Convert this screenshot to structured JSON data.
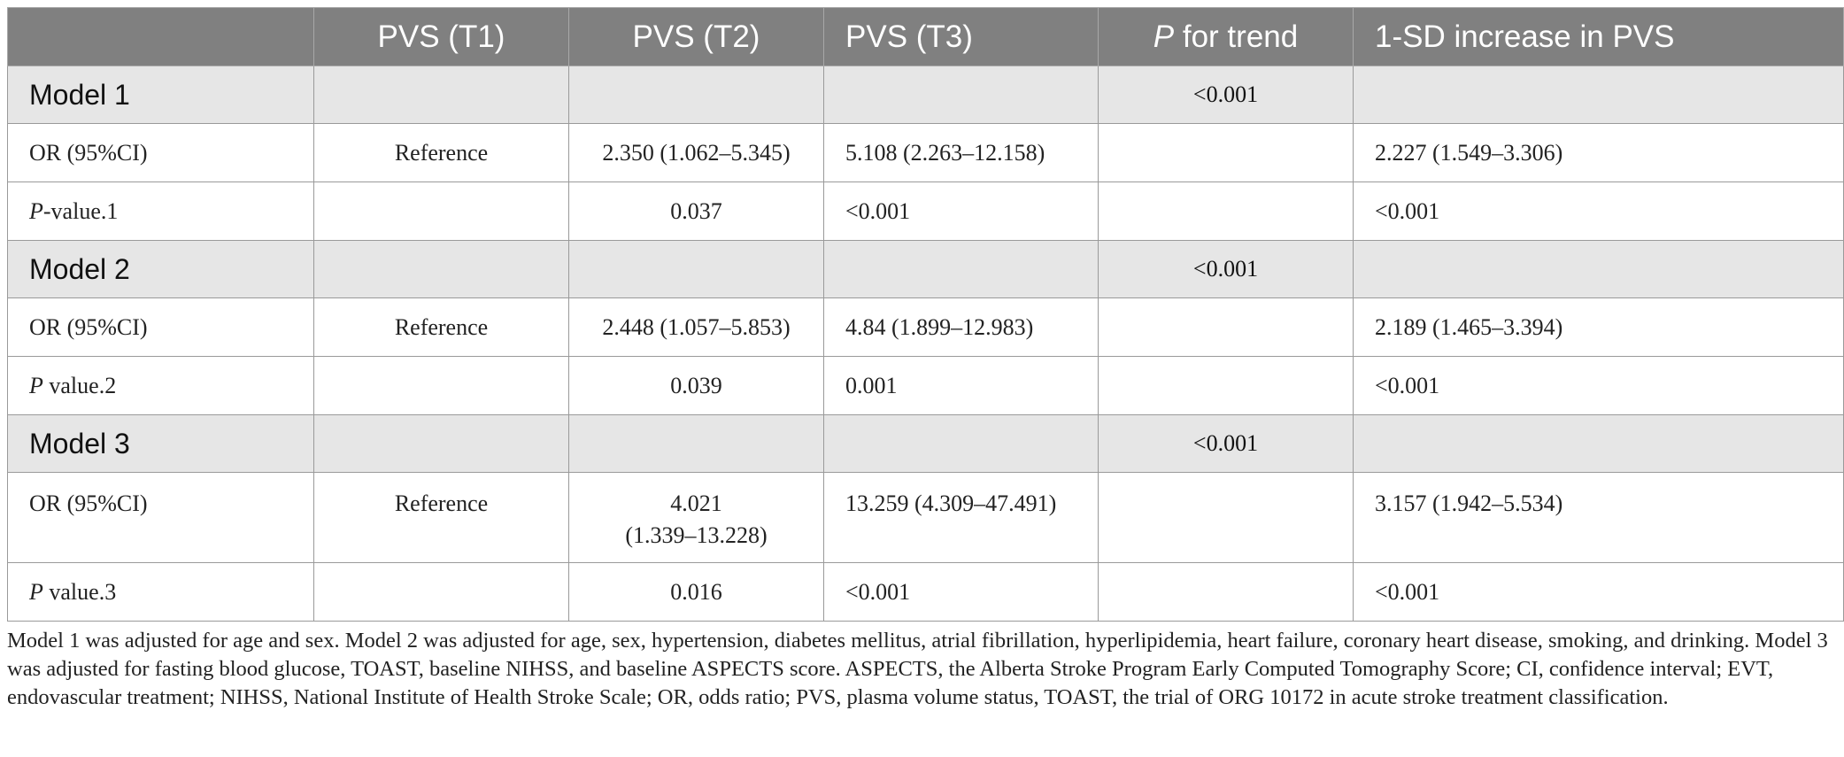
{
  "table": {
    "headers": {
      "blank": "",
      "t1": "PVS (T1)",
      "t2": "PVS (T2)",
      "t3": "PVS (T3)",
      "trend_p": "P",
      "trend_rest": " for trend",
      "sd": "1-SD increase in PVS"
    },
    "models": [
      {
        "label": "Model 1",
        "p_trend": "<0.001",
        "or_label": "OR (95%CI)",
        "or_t1": "Reference",
        "or_t2": "2.350 (1.062–5.345)",
        "or_t3": "5.108 (2.263–12.158)",
        "or_sd": "2.227 (1.549–3.306)",
        "p_label_italic": "P",
        "p_label_rest": "-value.1",
        "p_t2": "0.037",
        "p_t3": "<0.001",
        "p_sd": "<0.001"
      },
      {
        "label": "Model 2",
        "p_trend": "<0.001",
        "or_label": "OR (95%CI)",
        "or_t1": "Reference",
        "or_t2": "2.448 (1.057–5.853)",
        "or_t3": "4.84 (1.899–12.983)",
        "or_sd": "2.189 (1.465–3.394)",
        "p_label_italic": "P",
        "p_label_rest": " value.2",
        "p_t2": "0.039",
        "p_t3": "0.001",
        "p_sd": "<0.001"
      },
      {
        "label": "Model 3",
        "p_trend": "<0.001",
        "or_label": "OR (95%CI)",
        "or_t1": "Reference",
        "or_t2_line1": "4.021",
        "or_t2_line2": "(1.339–13.228)",
        "or_t3": "13.259 (4.309–47.491)",
        "or_sd": "3.157 (1.942–5.534)",
        "p_label_italic": "P",
        "p_label_rest": " value.3",
        "p_t2": "0.016",
        "p_t3": "<0.001",
        "p_sd": "<0.001"
      }
    ]
  },
  "footnote": "Model 1 was adjusted for age and sex. Model 2 was adjusted for age, sex, hypertension, diabetes mellitus, atrial fibrillation, hyperlipidemia, heart failure, coronary heart disease, smoking, and drinking. Model 3 was adjusted for fasting blood glucose, TOAST, baseline NIHSS, and baseline ASPECTS score. ASPECTS, the Alberta Stroke Program Early Computed Tomography Score; CI, confidence interval; EVT, endovascular treatment; NIHSS, National Institute of Health Stroke Scale; OR, odds ratio; PVS, plasma volume status, TOAST, the trial of ORG 10172 in acute stroke treatment classification."
}
